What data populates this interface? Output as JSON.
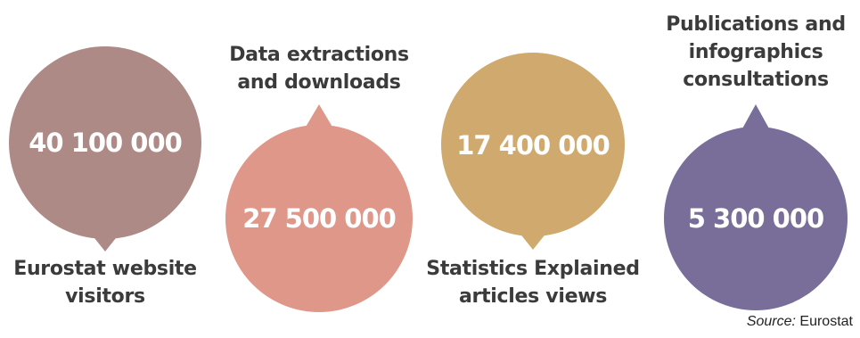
{
  "stats": [
    {
      "value": "40 100 000",
      "label_lines": [
        "Eurostat website",
        "visitors"
      ],
      "color": "#ad8a86"
    },
    {
      "value": "27 500 000",
      "label_lines": [
        "Data extractions",
        "and downloads"
      ],
      "color": "#df978a"
    },
    {
      "value": "17 400 000",
      "label_lines": [
        "Statistics Explained",
        "articles views"
      ],
      "color": "#cfa96d"
    },
    {
      "value": "5 300 000",
      "label_lines": [
        "Publications and",
        "infographics",
        "consultations"
      ],
      "color": "#796d99"
    }
  ],
  "source": {
    "prefix": "Source:",
    "name": "Eurostat"
  }
}
